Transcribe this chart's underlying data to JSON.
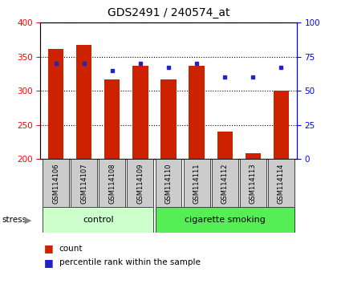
{
  "title": "GDS2491 / 240574_at",
  "samples": [
    "GSM114106",
    "GSM114107",
    "GSM114108",
    "GSM114109",
    "GSM114110",
    "GSM114111",
    "GSM114112",
    "GSM114113",
    "GSM114114"
  ],
  "counts": [
    362,
    367,
    317,
    337,
    317,
    337,
    240,
    209,
    300
  ],
  "percentiles": [
    70,
    70,
    65,
    70,
    67,
    70,
    60,
    60,
    67
  ],
  "ylim_left": [
    200,
    400
  ],
  "ylim_right": [
    0,
    100
  ],
  "yticks_left": [
    200,
    250,
    300,
    350,
    400
  ],
  "yticks_right": [
    0,
    25,
    50,
    75,
    100
  ],
  "bar_color": "#cc2200",
  "dot_color": "#2222cc",
  "bar_width": 0.55,
  "control_indices": [
    0,
    1,
    2,
    3
  ],
  "smoking_indices": [
    4,
    5,
    6,
    7,
    8
  ],
  "control_label": "control",
  "smoking_label": "cigarette smoking",
  "stress_label": "stress",
  "legend_count": "count",
  "legend_pct": "percentile rank within the sample",
  "control_color": "#ccffcc",
  "smoking_color": "#55ee55",
  "tick_label_bg": "#cccccc"
}
